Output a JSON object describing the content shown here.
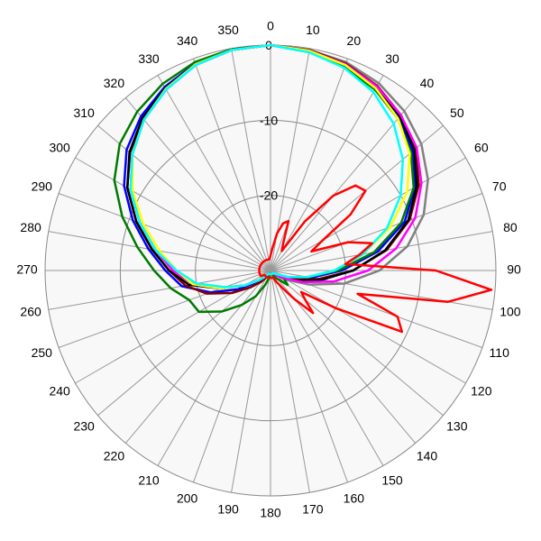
{
  "chart_data": {
    "type": "polar",
    "rlim": [
      -30,
      0
    ],
    "rticks": [
      0,
      -10,
      -20
    ],
    "thetaticks": [
      0,
      10,
      20,
      30,
      40,
      50,
      60,
      70,
      80,
      90,
      100,
      110,
      120,
      130,
      140,
      150,
      160,
      170,
      180,
      190,
      200,
      210,
      220,
      230,
      240,
      250,
      260,
      270,
      280,
      290,
      300,
      310,
      320,
      330,
      340,
      350
    ],
    "theta": [
      0,
      10,
      20,
      30,
      40,
      50,
      60,
      70,
      80,
      90,
      100,
      110,
      120,
      130,
      140,
      150,
      160,
      170,
      180,
      190,
      200,
      210,
      220,
      230,
      240,
      250,
      260,
      270,
      280,
      290,
      300,
      310,
      320,
      330,
      340,
      350
    ],
    "series": [
      {
        "color": "#808080",
        "values": [
          0,
          -0.2,
          -0.5,
          -1.2,
          -2.3,
          -3.8,
          -5.8,
          -8.3,
          -11.5,
          -15.5,
          -20,
          -24.5,
          -27.5,
          -29,
          -29.5,
          -29.5,
          -29.5,
          -29.5,
          -29.5,
          -29.5,
          -29.5,
          -29.5,
          -29,
          -28,
          -26,
          -23.5,
          -20,
          -17,
          -14.5,
          -11.5,
          -8.5,
          -6,
          -3.8,
          -2.2,
          -0.9,
          -0.2
        ]
      },
      {
        "color": "#0000ff",
        "values": [
          0,
          -0.4,
          -1,
          -2,
          -3.4,
          -5.3,
          -7.8,
          -11,
          -15.5,
          -20.5,
          -24.5,
          -27,
          -28.5,
          -29,
          -29.5,
          -29.5,
          -29.5,
          -29.5,
          -29.5,
          -29.5,
          -29.5,
          -29.5,
          -29,
          -27.5,
          -25,
          -21.5,
          -18,
          -16,
          -13.5,
          -10.5,
          -7.5,
          -5,
          -3.2,
          -1.8,
          -0.7,
          -0.2
        ]
      },
      {
        "color": "#007a00",
        "values": [
          0,
          -0.5,
          -1.2,
          -2.2,
          -3.6,
          -5.6,
          -8,
          -11.5,
          -16,
          -21,
          -25,
          -27,
          -28,
          -27,
          -28.5,
          -29,
          -29.5,
          -29.5,
          -29.5,
          -29,
          -28,
          -26,
          -24,
          -21.5,
          -19,
          -18.5,
          -16.5,
          -14.5,
          -12,
          -9,
          -6,
          -3.8,
          -2.4,
          -1.3,
          -0.5,
          -0.1
        ]
      },
      {
        "color": "#800000",
        "values": [
          0,
          -0.2,
          -0.7,
          -1.6,
          -3,
          -4.8,
          -7.2,
          -10.3,
          -14.3,
          -19,
          -23.5,
          -26.5,
          -28.5,
          -29.5,
          -29.5,
          -29.5,
          -29.5,
          -29.5,
          -29.5,
          -29.5,
          -29.5,
          -29,
          -28,
          -26.5,
          -24,
          -21,
          -18.5,
          -16.5,
          -14,
          -11,
          -8,
          -5.6,
          -3.6,
          -2,
          -0.8,
          -0.2
        ]
      },
      {
        "color": "#000000",
        "values": [
          0,
          -0.3,
          -0.8,
          -1.8,
          -3.2,
          -5,
          -7.5,
          -10.5,
          -14.5,
          -19,
          -23,
          -26,
          -28,
          -29,
          -29.5,
          -29.5,
          -29.5,
          -29.5,
          -29.5,
          -29.5,
          -29.5,
          -29.5,
          -29,
          -28,
          -26,
          -23,
          -19,
          -16.5,
          -14,
          -11,
          -8,
          -5.5,
          -3.5,
          -2,
          -0.8,
          -0.2
        ]
      },
      {
        "color": "#ff00ff",
        "values": [
          0,
          -0.3,
          -0.8,
          -1.7,
          -3,
          -4.6,
          -6.8,
          -9.5,
          -13,
          -17,
          -21.5,
          -25.5,
          -28,
          -29,
          -29.5,
          -29.5,
          -29.5,
          -29.5,
          -29.5,
          -29.5,
          -29.5,
          -29.5,
          -29,
          -28,
          -26,
          -23,
          -19.5,
          -17,
          -14.5,
          -11.5,
          -8.5,
          -6,
          -3.8,
          -2.2,
          -0.9,
          -0.2
        ]
      },
      {
        "color": "#ffff00",
        "values": [
          0,
          -0.3,
          -0.9,
          -2,
          -3.6,
          -5.8,
          -9,
          -13,
          -17.5,
          -21.5,
          -25,
          -27.5,
          -29,
          -29.5,
          -29.5,
          -29.5,
          -29.5,
          -29.5,
          -29.5,
          -29.5,
          -29.5,
          -29.5,
          -29,
          -28,
          -26,
          -23,
          -19.5,
          -17.5,
          -15,
          -12,
          -8.8,
          -6,
          -3.8,
          -2.1,
          -0.8,
          -0.2
        ]
      },
      {
        "color": "#00ffff",
        "values": [
          0,
          -0.5,
          -1.3,
          -2.6,
          -4.5,
          -7,
          -10,
          -13.5,
          -17.5,
          -21.5,
          -25,
          -27.5,
          -29,
          -29.5,
          -29.5,
          -29.5,
          -29.5,
          -29.5,
          -29.5,
          -29.5,
          -29.5,
          -29.5,
          -29,
          -28,
          -26,
          -23.5,
          -20,
          -17.5,
          -14.5,
          -11.5,
          -8.5,
          -6,
          -3.8,
          -2.2,
          -0.9,
          -0.2
        ]
      },
      {
        "color": "#ff0000",
        "theta": [
          0,
          5,
          10,
          15,
          20,
          25,
          30,
          35,
          40,
          45,
          50,
          55,
          60,
          65,
          70,
          75,
          80,
          85,
          90,
          95,
          100,
          105,
          110,
          115,
          120,
          125,
          130,
          135,
          140,
          145,
          150,
          155,
          160,
          165,
          170,
          175,
          180,
          185,
          190,
          195,
          200,
          205,
          210,
          215,
          220,
          225,
          230,
          235,
          240,
          245,
          250,
          255,
          260,
          265,
          270,
          275,
          280,
          285,
          290,
          295,
          300,
          305,
          310,
          315,
          320,
          325,
          330,
          335,
          340,
          345,
          350,
          355
        ],
        "values": [
          -28,
          -27,
          -25,
          -23.5,
          -23,
          -26,
          -27,
          -22,
          -17,
          -14,
          -13.5,
          -17,
          -22,
          -24,
          -19,
          -16,
          -18,
          -20,
          -8,
          -0.5,
          -6,
          -18,
          -12,
          -10.7,
          -20,
          -25,
          -24,
          -22,
          -25,
          -27,
          -28,
          -28.5,
          -29,
          -29,
          -29,
          -29,
          -29,
          -29,
          -29,
          -29,
          -29,
          -29,
          -29,
          -29,
          -29,
          -29,
          -29,
          -29,
          -28.5,
          -28.5,
          -28.5,
          -28.5,
          -28.5,
          -28.5,
          -28.5,
          -28.5,
          -28.5,
          -28.5,
          -28.5,
          -28.5,
          -28.5,
          -28.5,
          -28.5,
          -28.5,
          -28.5,
          -28.5,
          -28.5,
          -28.5,
          -28.5,
          -28.5,
          -28.5,
          -28.5
        ]
      }
    ]
  }
}
